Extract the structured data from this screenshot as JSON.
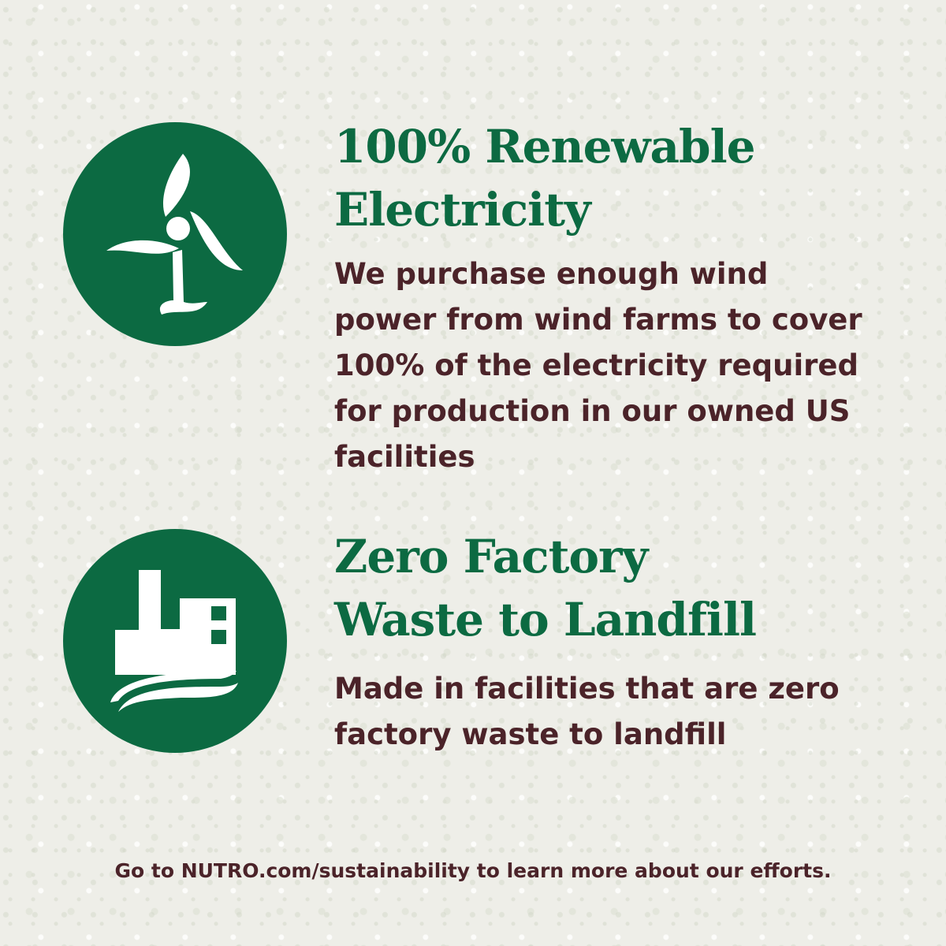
{
  "colors": {
    "brand_green": "#0c6a42",
    "text_brown": "#4b2329",
    "background": "#eeeee8"
  },
  "sections": [
    {
      "icon": "wind-turbine-icon",
      "heading_line1": "100% Renewable",
      "heading_line2": "Electricity",
      "body": "We purchase enough wind power from wind farms to cover 100% of the electricity required for production in our owned US facilities"
    },
    {
      "icon": "factory-icon",
      "heading_line1": "Zero Factory",
      "heading_line2": "Waste to Landfill",
      "body": "Made in facilities that are zero factory waste to landfill"
    }
  ],
  "footer": "Go to NUTRO.com/sustainability to learn more about our efforts."
}
